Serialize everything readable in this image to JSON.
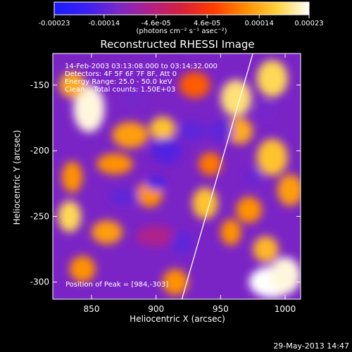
{
  "chart_data": {
    "type": "heatmap",
    "title": "Reconstructed RHESSI Image",
    "xlabel": "Heliocentric X (arcsec)",
    "ylabel": "Heliocentric Y (arcsec)",
    "xlim": [
      820,
      1012
    ],
    "ylim": [
      -313,
      -126
    ],
    "x_ticks": [
      850,
      900,
      950,
      1000
    ],
    "x_tick_labels": [
      "850",
      "900",
      "950",
      "1000"
    ],
    "y_ticks": [
      -150,
      -200,
      -250,
      -300
    ],
    "y_tick_labels": [
      "-150",
      "-200",
      "-250",
      "-300"
    ],
    "colorbar": {
      "range": [
        -0.00023,
        0.00023
      ],
      "tick_values": [
        -0.00023,
        -0.00014,
        -4.6e-05,
        4.6e-05,
        0.00014,
        0.00023
      ],
      "tick_labels": [
        "-0.00023",
        "-0.00014",
        "-4.6e-05",
        "4.6e-05",
        "0.00014",
        "0.00023"
      ],
      "unit_label": "(photons cm⁻² s⁻¹ asec⁻²)",
      "stops": [
        "#1b1bff",
        "#3a20f0",
        "#7a28c8",
        "#b0208a",
        "#d8203c",
        "#ff3c00",
        "#ff8c00",
        "#ffd23c",
        "#ffffff"
      ]
    },
    "annotations": [
      "14-Feb-2003 03:13:08.000 to 03:14:32.000",
      "Detectors: 4F 5F 6F 7F 8F, Att 0",
      "Energy Range: 25.0 - 50.0 keV",
      "Clean    Total counts: 1.50E+03"
    ],
    "peak_label": "Position of Peak = [984,-303]",
    "peak_position": [
      984,
      -303
    ],
    "limb_line": [
      [
        920,
        -313
      ],
      [
        975,
        -126
      ]
    ],
    "blobs": [
      {
        "x": 848,
        "y": -168,
        "v": 0.00022,
        "rx": 12,
        "ry": 18
      },
      {
        "x": 835,
        "y": -150,
        "v": 0.00014,
        "rx": 10,
        "ry": 10
      },
      {
        "x": 880,
        "y": -188,
        "v": 0.00013,
        "rx": 14,
        "ry": 10
      },
      {
        "x": 905,
        "y": -183,
        "v": 0.00016,
        "rx": 10,
        "ry": 9
      },
      {
        "x": 868,
        "y": -210,
        "v": 0.00012,
        "rx": 14,
        "ry": 8
      },
      {
        "x": 835,
        "y": -220,
        "v": 0.00012,
        "rx": 8,
        "ry": 12
      },
      {
        "x": 833,
        "y": -250,
        "v": 0.00018,
        "rx": 9,
        "ry": 12
      },
      {
        "x": 862,
        "y": -262,
        "v": 0.00013,
        "rx": 12,
        "ry": 9
      },
      {
        "x": 843,
        "y": -290,
        "v": 0.00012,
        "rx": 10,
        "ry": 10
      },
      {
        "x": 895,
        "y": -233,
        "v": 0.00012,
        "rx": 10,
        "ry": 10
      },
      {
        "x": 938,
        "y": -240,
        "v": 0.00016,
        "rx": 10,
        "ry": 12
      },
      {
        "x": 958,
        "y": -262,
        "v": 0.00012,
        "rx": 8,
        "ry": 10
      },
      {
        "x": 942,
        "y": -210,
        "v": 0.0001,
        "rx": 9,
        "ry": 9
      },
      {
        "x": 962,
        "y": -160,
        "v": 0.00019,
        "rx": 12,
        "ry": 14
      },
      {
        "x": 990,
        "y": -145,
        "v": 0.00018,
        "rx": 12,
        "ry": 14
      },
      {
        "x": 965,
        "y": -185,
        "v": 0.00014,
        "rx": 10,
        "ry": 10
      },
      {
        "x": 990,
        "y": -205,
        "v": 0.00016,
        "rx": 12,
        "ry": 14
      },
      {
        "x": 1004,
        "y": -230,
        "v": 0.00013,
        "rx": 10,
        "ry": 12
      },
      {
        "x": 972,
        "y": -245,
        "v": 0.00012,
        "rx": 10,
        "ry": 10
      },
      {
        "x": 985,
        "y": -275,
        "v": 0.00015,
        "rx": 10,
        "ry": 10
      },
      {
        "x": 990,
        "y": -300,
        "v": 0.00023,
        "rx": 18,
        "ry": 12
      },
      {
        "x": 1000,
        "y": -295,
        "v": 0.00022,
        "rx": 12,
        "ry": 14
      },
      {
        "x": 915,
        "y": -300,
        "v": 0.00012,
        "rx": 10,
        "ry": 10
      },
      {
        "x": 900,
        "y": -265,
        "v": -6e-05,
        "rx": 16,
        "ry": 8
      },
      {
        "x": 930,
        "y": -150,
        "v": 8e-05,
        "rx": 12,
        "ry": 10
      },
      {
        "x": 875,
        "y": -235,
        "v": -0.00014,
        "rx": 12,
        "ry": 6
      },
      {
        "x": 900,
        "y": -225,
        "v": -0.00016,
        "rx": 8,
        "ry": 5
      },
      {
        "x": 883,
        "y": -160,
        "v": -0.00012,
        "rx": 9,
        "ry": 7
      },
      {
        "x": 908,
        "y": -200,
        "v": -0.00015,
        "rx": 12,
        "ry": 10
      },
      {
        "x": 928,
        "y": -185,
        "v": -0.00014,
        "rx": 10,
        "ry": 8
      },
      {
        "x": 950,
        "y": -185,
        "v": -0.00014,
        "rx": 10,
        "ry": 8
      },
      {
        "x": 920,
        "y": -270,
        "v": -0.00014,
        "rx": 9,
        "ry": 9
      },
      {
        "x": 975,
        "y": -220,
        "v": -0.00013,
        "rx": 7,
        "ry": 6
      },
      {
        "x": 985,
        "y": -170,
        "v": -0.00012,
        "rx": 6,
        "ry": 7
      }
    ]
  },
  "footer": {
    "date_stamp": "29-May-2013 14:47"
  }
}
